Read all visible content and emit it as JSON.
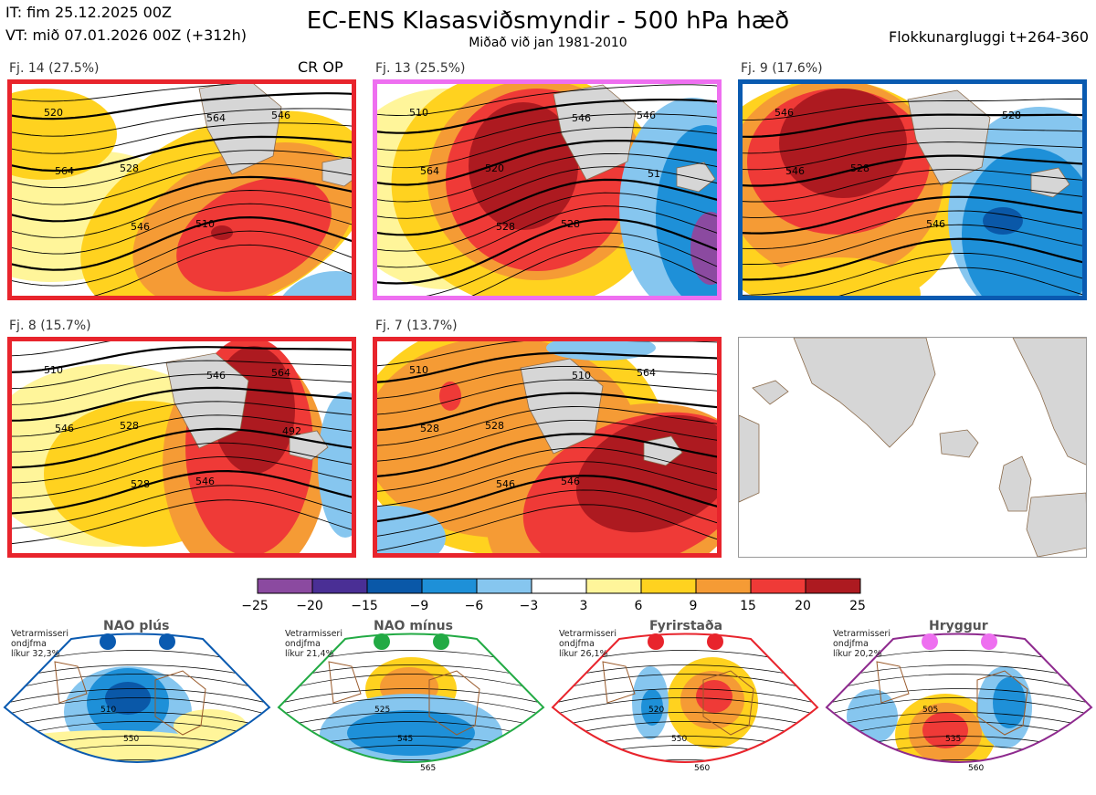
{
  "header": {
    "init_time": "IT: fim 25.12.2025 00Z",
    "valid_time": "VT: mið 07.01.2026 00Z  (+312h)",
    "title": "EC-ENS Klasasviðsmyndir - 500 hPa hæð",
    "subtitle": "Miðað við jan 1981-2010",
    "cluster_window": "Flokkunargluggi t+264-360"
  },
  "clusters": [
    {
      "label": "Fj. 14 (27.5%)",
      "members": 14,
      "percent": 27.5,
      "tag": "CR OP",
      "regime": "Fyrirstaða",
      "border_color": "#e8242c",
      "contours": [
        "520",
        "528",
        "510",
        "546",
        "564",
        "546",
        "564"
      ]
    },
    {
      "label": "Fj. 13 (25.5%)",
      "members": 13,
      "percent": 25.5,
      "tag": "",
      "regime": "Hryggur",
      "border_color": "#ee6ff0",
      "contours": [
        "510",
        "520",
        "528",
        "546",
        "564",
        "528",
        "546",
        "51"
      ]
    },
    {
      "label": "Fj. 9 (17.6%)",
      "members": 9,
      "percent": 17.6,
      "tag": "",
      "regime": "NAO plús",
      "border_color": "#0a5ab0",
      "contours": [
        "546",
        "528",
        "546",
        "528",
        "546"
      ]
    },
    {
      "label": "Fj. 8 (15.7%)",
      "members": 8,
      "percent": 15.7,
      "tag": "",
      "regime": "Fyrirstaða",
      "border_color": "#e8242c",
      "contours": [
        "510",
        "528",
        "546",
        "564",
        "546",
        "528",
        "546",
        "492"
      ]
    },
    {
      "label": "Fj. 7 (13.7%)",
      "members": 7,
      "percent": 13.7,
      "tag": "",
      "regime": "Fyrirstaða",
      "border_color": "#e8242c",
      "contours": [
        "510",
        "528",
        "546",
        "564",
        "528",
        "546",
        "510"
      ]
    }
  ],
  "colorbar": {
    "ticks": [
      "−25",
      "−20",
      "−15",
      "−9",
      "−6",
      "−3",
      "3",
      "6",
      "9",
      "15",
      "20",
      "25"
    ],
    "colors": [
      "#8b4aa0",
      "#4a2f95",
      "#0a58a8",
      "#1e90d8",
      "#86c6ef",
      "#ffffff",
      "#fff59a",
      "#ffd21f",
      "#f59b35",
      "#ef3a37",
      "#ad1a20"
    ]
  },
  "regimes": [
    {
      "name": "NAO plús",
      "info": [
        "Vetrarmisseri",
        "ondjfma",
        "líkur 32,3%"
      ],
      "color": "#0a5ab0",
      "frame_color": "#0a5ab0",
      "labels": [
        "510",
        "550"
      ]
    },
    {
      "name": "NAO mínus",
      "info": [
        "Vetrarmisseri",
        "ondjfma",
        "líkur 21,4%"
      ],
      "color": "#22aa44",
      "frame_color": "#22aa44",
      "labels": [
        "525",
        "545",
        "565"
      ]
    },
    {
      "name": "Fyrirstaða",
      "info": [
        "Vetrarmisseri",
        "ondjfma",
        "líkur 26,1%"
      ],
      "color": "#e8242c",
      "frame_color": "#e8242c",
      "labels": [
        "520",
        "550",
        "560"
      ]
    },
    {
      "name": "Hryggur",
      "info": [
        "Vetrarmisseri",
        "ondjfma",
        "líkur 20,2%"
      ],
      "color": "#ee6ff0",
      "frame_color": "#8e2a8e",
      "labels": [
        "505",
        "535",
        "560"
      ]
    }
  ]
}
